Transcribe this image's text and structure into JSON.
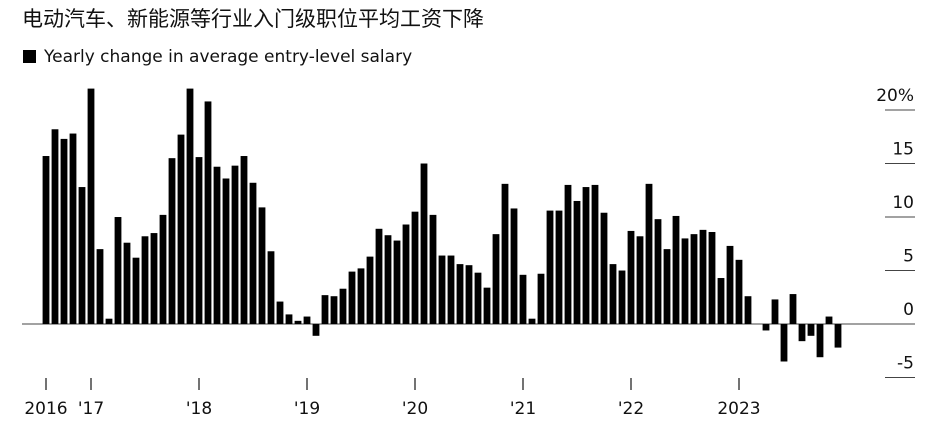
{
  "chart_data": {
    "type": "bar",
    "title": "电动汽车、新能源等行业入门级职位平均工资下降",
    "categories": [
      "2016",
      null,
      null,
      null,
      null,
      "'17",
      null,
      null,
      null,
      null,
      null,
      null,
      null,
      null,
      null,
      null,
      null,
      "'18",
      null,
      null,
      null,
      null,
      null,
      null,
      null,
      null,
      null,
      null,
      null,
      "'19",
      null,
      null,
      null,
      null,
      null,
      null,
      null,
      null,
      null,
      null,
      null,
      "'20",
      null,
      null,
      null,
      null,
      null,
      null,
      null,
      null,
      null,
      null,
      null,
      "'21",
      null,
      null,
      null,
      null,
      null,
      null,
      null,
      null,
      null,
      null,
      null,
      "'22",
      null,
      null,
      null,
      null,
      null,
      null,
      null,
      null,
      null,
      null,
      null,
      "2023",
      null,
      null,
      null,
      null,
      null,
      null,
      null,
      null,
      null,
      null,
      null
    ],
    "series": [
      {
        "name": "Yearly change in average entry-level salary",
        "color": "#000000",
        "values": [
          15.7,
          18.2,
          17.3,
          17.8,
          12.8,
          22,
          7,
          0.5,
          10,
          7.6,
          6.2,
          8.2,
          8.5,
          10.2,
          15.5,
          17.7,
          22,
          15.6,
          20.8,
          14.7,
          13.6,
          14.8,
          15.7,
          13.2,
          10.9,
          6.8,
          2.1,
          0.9,
          0.3,
          0.7,
          -1.1,
          2.7,
          2.6,
          3.3,
          4.9,
          5.2,
          6.3,
          8.9,
          8.3,
          7.8,
          9.3,
          10.5,
          15,
          10.2,
          6.4,
          6.4,
          5.6,
          5.5,
          4.8,
          3.4,
          8.4,
          13.1,
          10.8,
          4.6,
          0.5,
          4.7,
          10.6,
          10.6,
          13,
          11.5,
          12.8,
          13,
          10.4,
          5.6,
          5,
          8.7,
          8.2,
          13.1,
          9.8,
          7,
          10.1,
          8,
          8.4,
          8.8,
          8.6,
          4.3,
          7.3,
          6,
          2.6,
          0,
          -0.6,
          2.3,
          -3.5,
          2.8,
          -1.6,
          -1.1,
          -3.1,
          0.7,
          -2.2
        ]
      }
    ],
    "ylim": [
      -5.5,
      22
    ],
    "yticks": [
      {
        "value": 20,
        "label": "20%"
      },
      15,
      10,
      5,
      0,
      -5
    ]
  }
}
